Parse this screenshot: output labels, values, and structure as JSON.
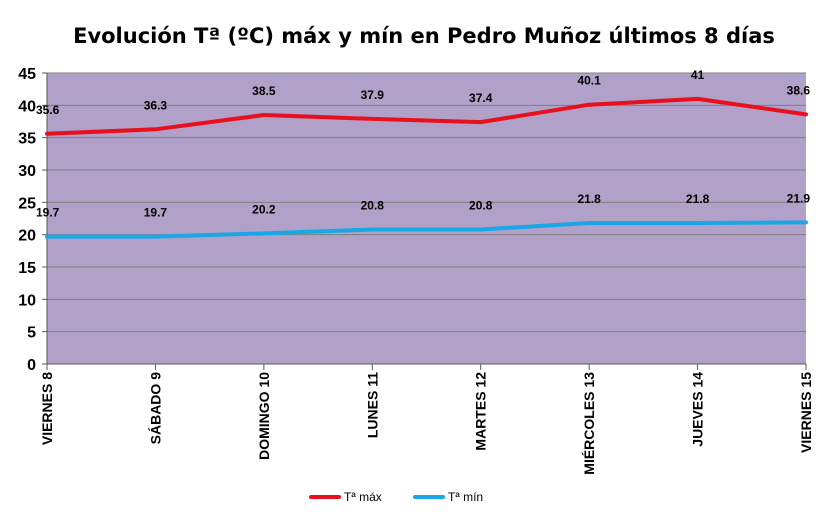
{
  "chart_data": {
    "type": "line",
    "title": "Evolución Tª (ºC) máx y mín en Pedro Muñoz últimos 8 días",
    "categories": [
      "VIERNES 8",
      "SÁBADO 9",
      "DOMINGO 10",
      "LUNES 11",
      "MARTES 12",
      "MIÉRCOLES 13",
      "JUEVES 14",
      "VIERNES 15"
    ],
    "series": [
      {
        "name": "Tª máx",
        "values": [
          35.6,
          36.3,
          38.5,
          37.9,
          37.4,
          40.1,
          41,
          38.6
        ],
        "color": "#e8101c"
      },
      {
        "name": "Tª mín",
        "values": [
          19.7,
          19.7,
          20.2,
          20.8,
          20.8,
          21.8,
          21.8,
          21.9
        ],
        "color": "#18a8e6"
      }
    ],
    "ylim": [
      0,
      45
    ],
    "yticks": [
      0,
      5,
      10,
      15,
      20,
      25,
      30,
      35,
      40,
      45
    ],
    "grid": true,
    "legend": "bottom",
    "plot_background": "#b1a0c7",
    "grid_color": "#7f7f7f"
  }
}
